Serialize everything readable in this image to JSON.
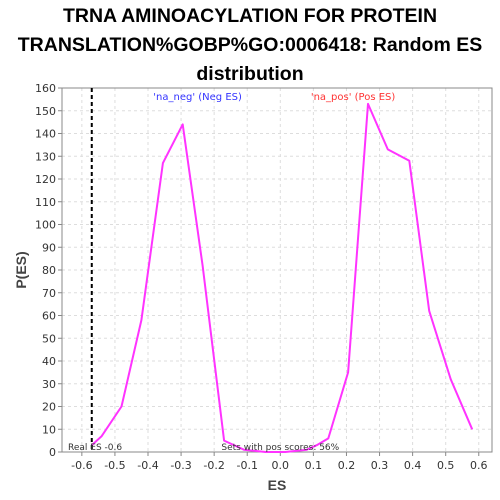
{
  "chart_data": {
    "type": "line",
    "title_lines": [
      "TRNA AMINOACYLATION FOR PROTEIN",
      "TRANSLATION%GOBP%GO:0006418: Random ES",
      "distribution"
    ],
    "xlabel": "ES",
    "ylabel": "P(ES)",
    "xlim": [
      -0.66,
      0.64
    ],
    "ylim": [
      0,
      160
    ],
    "xticks": [
      -0.6,
      -0.5,
      -0.4,
      -0.3,
      -0.2,
      -0.1,
      0.0,
      0.1,
      0.2,
      0.3,
      0.4,
      0.5,
      0.6
    ],
    "xtick_labels": [
      "-0.6",
      "-0.5",
      "-0.4",
      "-0.3",
      "-0.2",
      "-0.1",
      "0.0",
      "0.1",
      "0.2",
      "0.3",
      "0.4",
      "0.5",
      "0.6"
    ],
    "yticks": [
      0,
      10,
      20,
      30,
      40,
      50,
      60,
      70,
      80,
      90,
      100,
      110,
      120,
      130,
      140,
      150,
      160
    ],
    "grid": true,
    "series": [
      {
        "color": "#ff33ff",
        "x": [
          -0.57,
          -0.54,
          -0.48,
          -0.42,
          -0.355,
          -0.295,
          -0.235,
          -0.17,
          -0.11,
          -0.045,
          0.015,
          0.08,
          0.11,
          0.145,
          0.205,
          0.265,
          0.325,
          0.39,
          0.45,
          0.515,
          0.58
        ],
        "y": [
          3,
          7,
          20,
          58,
          127,
          144,
          82,
          5,
          1,
          0,
          0,
          1,
          3,
          6,
          35,
          153,
          133,
          128,
          62,
          32,
          10
        ]
      }
    ],
    "real_es": {
      "x": -0.57,
      "label": "Real ES -0.6",
      "color": "#000000",
      "style": "dashed"
    },
    "legend_neg": {
      "label": "'na_neg' (Neg ES)",
      "color": "#3333ff"
    },
    "legend_pos": {
      "label": "'na_pos' (Pos ES)",
      "color": "#ff3333"
    },
    "annotation": "Sets with pos scores: 56%"
  }
}
